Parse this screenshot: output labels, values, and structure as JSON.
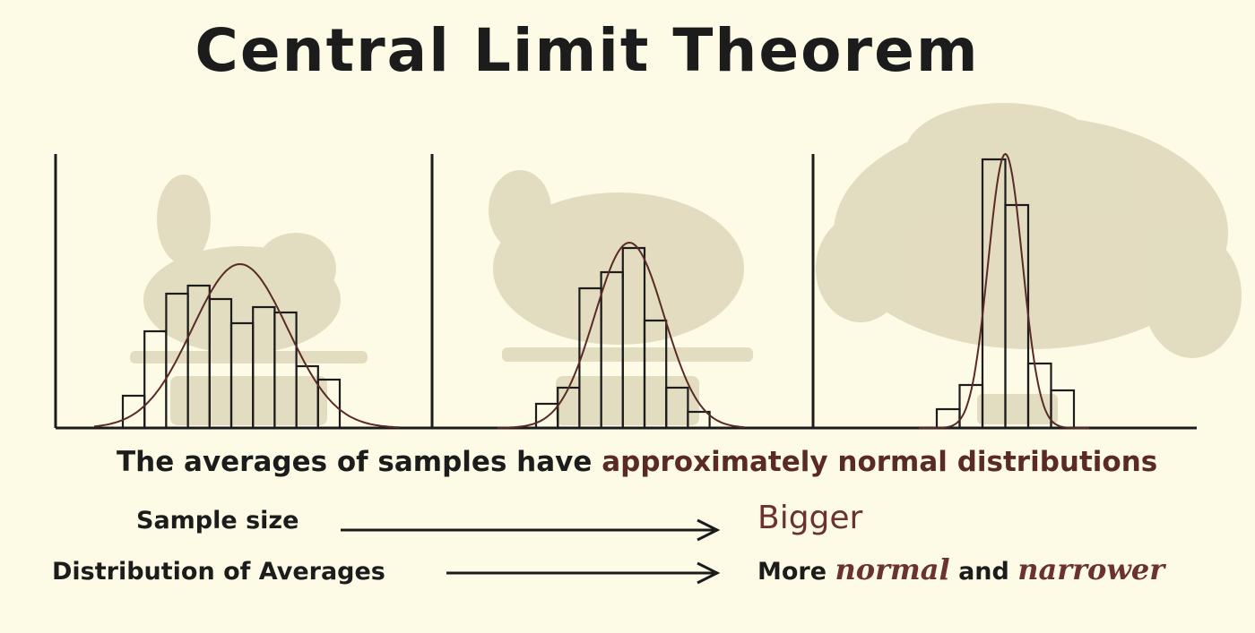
{
  "title": "Central Limit Theorem",
  "caption": {
    "prefix": "The averages of samples have",
    "accent": "approximately normal distributions"
  },
  "rows": [
    {
      "label": "Sample size",
      "value_parts": [
        {
          "text": "Bigger",
          "style": "brown big"
        }
      ]
    },
    {
      "label": "Distribution of Averages",
      "value_parts": [
        {
          "text": "More ",
          "style": ""
        },
        {
          "text": "normal",
          "style": "brown hand"
        },
        {
          "text": " and ",
          "style": ""
        },
        {
          "text": "narrower",
          "style": "brown hand"
        }
      ]
    }
  ],
  "colors": {
    "ink": "#1c1c1c",
    "accent": "#5a2a26",
    "curve": "#5a2a26",
    "bunny": "#d9d2b4",
    "background": "#fdfbe6"
  },
  "chart_data": [
    {
      "type": "bar",
      "overlay": "normal-curve",
      "ylim": [
        0,
        10
      ],
      "values": [
        1.2,
        3.6,
        5.0,
        5.3,
        4.8,
        3.9,
        4.5,
        4.3,
        2.3,
        1.8
      ],
      "curve": {
        "mean": 5.4,
        "sd": 2.2,
        "peak": 6.1
      }
    },
    {
      "type": "bar",
      "overlay": "normal-curve",
      "ylim": [
        0,
        10
      ],
      "values": [
        0.9,
        1.5,
        5.2,
        5.8,
        6.7,
        4.0,
        1.5,
        0.6
      ],
      "curve": {
        "mean": 4.3,
        "sd": 1.6,
        "peak": 6.9
      }
    },
    {
      "type": "bar",
      "overlay": "normal-curve",
      "ylim": [
        0,
        10
      ],
      "values": [
        0.7,
        1.6,
        10.0,
        8.3,
        2.4,
        1.4
      ],
      "curve": {
        "mean": 3.0,
        "sd": 0.75,
        "peak": 10.2
      }
    }
  ]
}
